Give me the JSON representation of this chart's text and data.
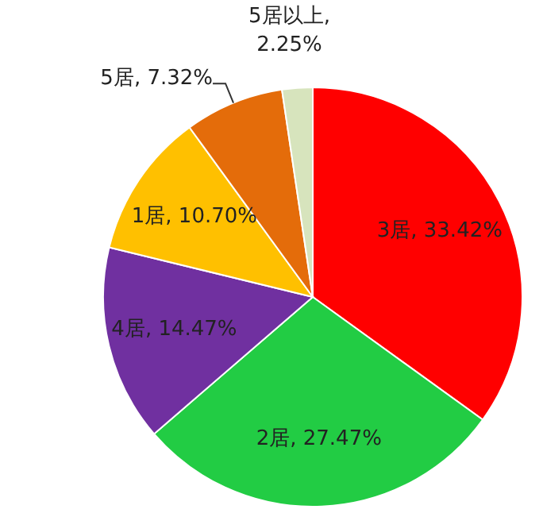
{
  "chart_data": {
    "type": "pie",
    "categories": [
      "3居",
      "2居",
      "4居",
      "1居",
      "5居",
      "5居以上"
    ],
    "values": [
      33.42,
      27.47,
      14.47,
      10.7,
      7.32,
      2.25
    ],
    "colors": [
      "#ff0000",
      "#22cc44",
      "#7030a0",
      "#ffc000",
      "#e46c0a",
      "#d7e4bd"
    ],
    "value_labels": [
      ", 33.42%",
      ", 27.47%",
      ", 14.47%",
      ", 10.70%",
      ", 7.32%",
      ", 2.25%"
    ]
  }
}
